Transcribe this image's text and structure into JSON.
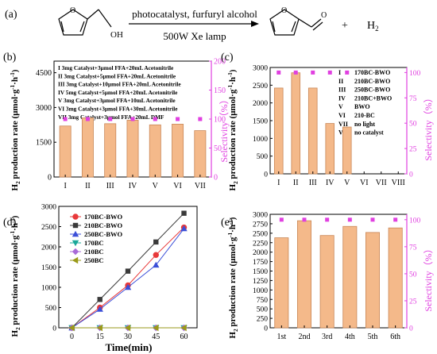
{
  "reaction": {
    "label": "(a)",
    "conditions_top": "photocatalyst, furfuryl alcohol",
    "conditions_bottom": "500W Xe lamp",
    "reactant_group": "OH",
    "product_plus": "+",
    "h2_prefix": "H",
    "h2_sub": "2"
  },
  "colors": {
    "bar_fill": "#f4b98a",
    "bar_stroke": "#c98757",
    "selectivity": "#e040e0",
    "axis": "#000000"
  },
  "chart_data": [
    {
      "id": "b",
      "panel_label": "(b)",
      "type": "bar",
      "categories": [
        "I",
        "II",
        "III",
        "IV",
        "V",
        "VI",
        "VII"
      ],
      "values": [
        2200,
        2550,
        2300,
        2450,
        2250,
        2280,
        2000
      ],
      "ylim": [
        0,
        5000
      ],
      "yticks": [
        0,
        1500,
        3000,
        4500
      ],
      "ylabel_prefix": "H",
      "ylabel_sub": "2",
      "ylabel_main": " production rate (μmol·g",
      "ylabel_sup1": "-1",
      "ylabel_mid": "·h",
      "ylabel_sup2": "-1",
      "ylabel_end": ")",
      "y2label": "Selectivity（%）",
      "y2lim": [
        0,
        200
      ],
      "y2ticks": [
        0,
        50,
        100,
        150,
        200
      ],
      "selectivity": [
        100,
        100,
        100,
        100,
        100,
        100,
        100
      ],
      "legend": [
        "I 3mg Catalyst+3μmol FFA+20mL Acetonitrile",
        "II 3mg Catalyst+5μmol FFA+20mL Acetonitrile",
        "III 3mg Catalyst+10μmol FFA+20mL Acetonitrile",
        "IV 5mg Catalyst+5μmol FFA+20mL Acetonitrile",
        "V 3mg Catalyst+3μmol FFA+10mL Acetonitrile",
        "VI 3mg Catalyst+3μmol FFA+30mL Acetonitrile",
        "VII 3mg Catalyst+3μmol FFA+20mL DMF"
      ]
    },
    {
      "id": "c",
      "panel_label": "(c)",
      "type": "bar",
      "categories": [
        "I",
        "II",
        "III",
        "IV",
        "V",
        "VI",
        "VII",
        "VIII"
      ],
      "values": [
        2420,
        2850,
        2420,
        1420,
        1320,
        0,
        0,
        0
      ],
      "ylim": [
        0,
        3000
      ],
      "yticks": [
        0,
        500,
        1000,
        1500,
        2000,
        2500,
        3000
      ],
      "ylabel_prefix": "H",
      "ylabel_sub": "2",
      "ylabel_main": " production rate (μmol·g",
      "ylabel_sup1": "-1",
      "ylabel_mid": "·h",
      "ylabel_sup2": "-1",
      "ylabel_end": ")",
      "y2label": "Selectivity（%）",
      "y2lim": [
        0,
        105
      ],
      "y2ticks": [
        0,
        25,
        50,
        75,
        100
      ],
      "selectivity": [
        100,
        100,
        100,
        100,
        100,
        null,
        null,
        null
      ],
      "legend": [
        {
          "num": "I",
          "text": "170BC-BWO"
        },
        {
          "num": "II",
          "text": "210BC-BWO"
        },
        {
          "num": "III",
          "text": "250BC-BWO"
        },
        {
          "num": "IV",
          "text": "210BC+BWO"
        },
        {
          "num": "V",
          "text": "BWO"
        },
        {
          "num": "VI",
          "text": "210-BC"
        },
        {
          "num": "VII",
          "text": "no light"
        },
        {
          "num": "VIII",
          "text": "no catalyst"
        }
      ]
    },
    {
      "id": "d",
      "panel_label": "(d)",
      "type": "line",
      "x": [
        0,
        15,
        30,
        45,
        60
      ],
      "xlabel": "Time(min)",
      "xlim": [
        -7,
        67
      ],
      "ylim": [
        0,
        3000
      ],
      "yticks": [
        0,
        500,
        1000,
        1500,
        2000,
        2500,
        3000
      ],
      "ylabel_prefix": "H",
      "ylabel_sub": "2",
      "ylabel_main": " production rate (μmol·g",
      "ylabel_sup1": "-1",
      "ylabel_mid": "·h",
      "ylabel_sup2": "-1",
      "ylabel_end": ")",
      "series": [
        {
          "name": "170BC-BWO",
          "color": "#e8393a",
          "marker": "circle",
          "values": [
            0,
            500,
            1050,
            1800,
            2480
          ]
        },
        {
          "name": "210BC-BWO",
          "color": "#3a3a3a",
          "marker": "square",
          "values": [
            0,
            700,
            1400,
            2120,
            2830
          ]
        },
        {
          "name": "250BC-BWO",
          "color": "#3b4fd8",
          "marker": "triangle-up",
          "values": [
            0,
            460,
            1000,
            1550,
            2450
          ]
        },
        {
          "name": "170BC",
          "color": "#19a89a",
          "marker": "triangle-down",
          "values": [
            0,
            0,
            0,
            0,
            0
          ]
        },
        {
          "name": "210BC",
          "color": "#a86ad8",
          "marker": "diamond",
          "values": [
            0,
            0,
            0,
            0,
            0
          ]
        },
        {
          "name": "250BC",
          "color": "#9a9a18",
          "marker": "triangle-left",
          "values": [
            0,
            0,
            0,
            0,
            0
          ]
        }
      ]
    },
    {
      "id": "e",
      "panel_label": "(e)",
      "type": "bar",
      "categories": [
        "1st",
        "2nd",
        "3rd",
        "4th",
        "5th",
        "6th"
      ],
      "values": [
        2380,
        2830,
        2440,
        2680,
        2520,
        2640
      ],
      "ylim": [
        0,
        3000
      ],
      "yticks": [
        0,
        250,
        500,
        750,
        1000,
        1250,
        1500,
        1750,
        2000,
        2250,
        2500,
        2750,
        3000
      ],
      "ylabel_prefix": "H",
      "ylabel_sub": "2",
      "ylabel_main": " production rate (μmol·g",
      "ylabel_sup1": "-1",
      "ylabel_mid": "·h",
      "ylabel_sup2": "-1",
      "ylabel_end": ")",
      "y2label": "Selectivity（%）",
      "y2lim": [
        0,
        105
      ],
      "y2ticks": [
        0,
        25,
        50,
        75,
        100
      ],
      "selectivity": [
        100,
        100,
        100,
        100,
        100,
        100
      ]
    }
  ]
}
